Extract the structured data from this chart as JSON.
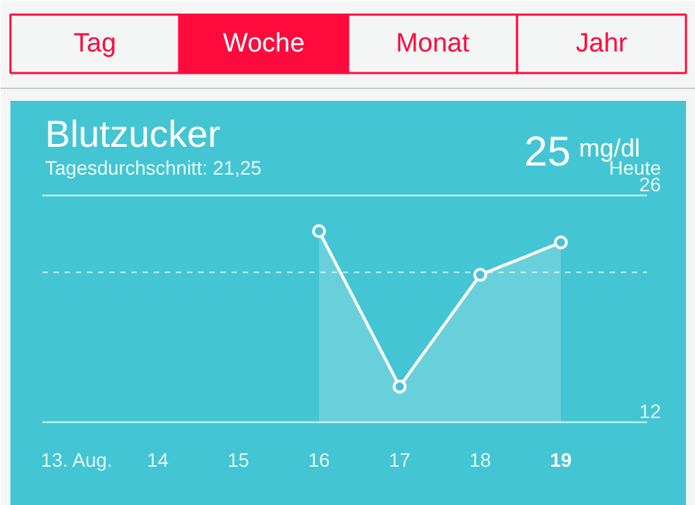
{
  "chart_data": {
    "type": "area",
    "title": "Blutzucker",
    "subtitle": "Tagesdurchschnitt: 21,25",
    "annotations": [
      "Tag",
      "Woche",
      "Monat",
      "Jahr",
      "25",
      "mg/dl",
      "Heute"
    ],
    "categories": [
      "13. Aug.",
      "14",
      "15",
      "16",
      "17",
      "18",
      "19"
    ],
    "series": [
      {
        "color": "#ffffff",
        "values": [
          null,
          null,
          null,
          23.8,
          14.2,
          21.1,
          23.1
        ]
      }
    ],
    "ylim": [
      12,
      26
    ],
    "yticks": [
      12,
      26
    ],
    "marker": "circle",
    "line_style": "solid",
    "ref_lines": [
      {
        "axis": "y",
        "value": 21.25,
        "label": null,
        "line_style": "dashed",
        "color": "#ffffff"
      }
    ]
  }
}
